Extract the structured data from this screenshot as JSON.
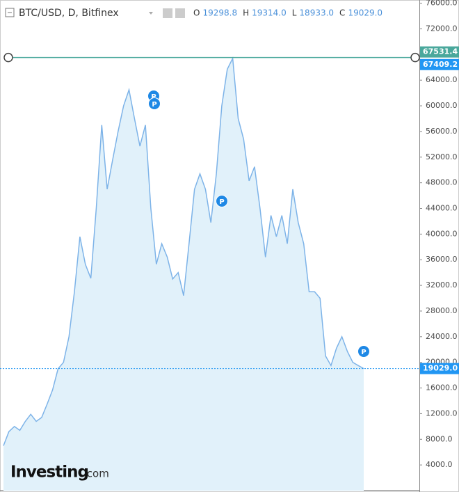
{
  "chart_data": {
    "type": "area",
    "title": "BTC/USD, D, Bitfinex",
    "ohlc_keys": [
      "O",
      "H",
      "L",
      "C"
    ],
    "ohlc": [
      19298.8,
      {
        "value": 19314,
        "label": "19314.0"
      },
      {
        "value": 18933,
        "label": "18933.0"
      },
      {
        "value": 19029,
        "label": "19029.0"
      }
    ],
    "values": [
      7000,
      9200,
      10000,
      9400,
      10800,
      11900,
      10800,
      11400,
      13500,
      15700,
      19000,
      20000,
      24000,
      31000,
      39600,
      35300,
      33100,
      44000,
      57000,
      47000,
      51600,
      56000,
      60000,
      62500,
      58000,
      53700,
      57000,
      44000,
      35300,
      38500,
      36400,
      33000,
      34000,
      30400,
      38500,
      47000,
      49400,
      47000,
      41800,
      49400,
      60000,
      65700,
      67409.2,
      58000,
      54800,
      48300,
      50500,
      44000,
      36400,
      42900,
      39600,
      42900,
      38500,
      47000,
      41800,
      38500,
      31000,
      31000,
      30000,
      21000,
      19500,
      22200,
      24000,
      21700,
      20000,
      19500,
      19029
    ],
    "color": "#7db3e8",
    "fill_color": "#e1f1fa",
    "ylim": [
      0,
      76500
    ],
    "yticks": [
      {
        "value": 4000,
        "label": "4000.0"
      },
      {
        "value": 8000,
        "label": "8000.0"
      },
      {
        "value": 12000,
        "label": "12000.0"
      },
      {
        "value": 16000,
        "label": "16000.0"
      },
      {
        "value": 20000,
        "label": "20000.0"
      },
      {
        "value": 24000,
        "label": "24000.0"
      },
      {
        "value": 28000,
        "label": "28000.0"
      },
      {
        "value": 32000,
        "label": "32000.0"
      },
      {
        "value": 36000,
        "label": "36000.0"
      },
      {
        "value": 40000,
        "label": "40000.0"
      },
      {
        "value": 44000,
        "label": "44000.0"
      },
      {
        "value": 48000,
        "label": "48000.0"
      },
      {
        "value": 52000,
        "label": "52000.0"
      },
      {
        "value": 56000,
        "label": "56000.0"
      },
      {
        "value": 60000,
        "label": "60000.0"
      },
      {
        "value": 64000,
        "label": "64000.0"
      },
      {
        "value": 68000,
        "label": "68000.0"
      },
      {
        "value": 72000,
        "label": "72000.0"
      },
      {
        "value": 76000,
        "label": "76000.0"
      }
    ],
    "price_lines": [
      67531.4,
      67409.2,
      {
        "value": 19029,
        "label": "19029.0"
      }
    ],
    "price_line_colors": [
      "#4aa89c",
      "#2196f3",
      "#2196f3"
    ],
    "price_line_styles": [
      "solid",
      "none",
      "dotted"
    ],
    "annotations": [
      "P",
      "P",
      "P",
      "P"
    ],
    "watermark": [
      "Investing",
      ".com"
    ]
  }
}
